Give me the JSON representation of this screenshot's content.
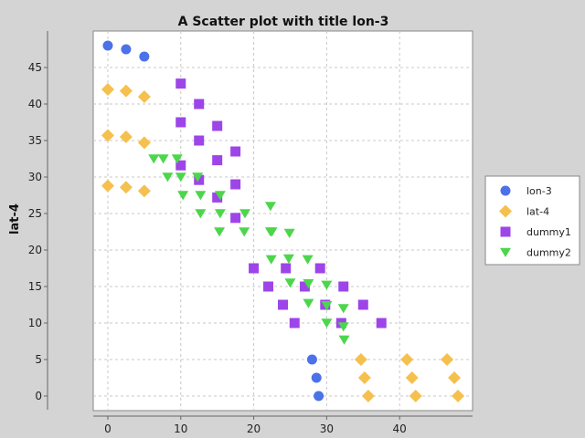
{
  "chart_data": {
    "type": "scatter",
    "title": "A Scatter plot with title lon-3",
    "xlabel": "",
    "ylabel": "lat-4",
    "xlim": [
      -2,
      50
    ],
    "ylim": [
      -2,
      50
    ],
    "x_ticks": [
      "0",
      "10",
      "20",
      "30",
      "40"
    ],
    "y_ticks": [
      "0",
      "5",
      "10",
      "15",
      "20",
      "25",
      "30",
      "35",
      "40",
      "45"
    ],
    "grid": true,
    "legend_position": "right",
    "series": [
      {
        "name": "lon-3",
        "color": "#4b72e8",
        "marker": "circle",
        "points": [
          [
            0,
            48
          ],
          [
            2.5,
            47.5
          ],
          [
            5,
            46.5
          ],
          [
            28,
            5
          ],
          [
            28.6,
            2.5
          ],
          [
            28.9,
            0
          ]
        ]
      },
      {
        "name": "lat-4",
        "color": "#f5c04e",
        "marker": "diamond",
        "points": [
          [
            0,
            42
          ],
          [
            2.5,
            41.8
          ],
          [
            5,
            41
          ],
          [
            0,
            35.7
          ],
          [
            2.5,
            35.5
          ],
          [
            5,
            34.7
          ],
          [
            0,
            28.8
          ],
          [
            2.5,
            28.6
          ],
          [
            5,
            28.1
          ],
          [
            34.7,
            5
          ],
          [
            35.2,
            2.5
          ],
          [
            35.7,
            0
          ],
          [
            41,
            5
          ],
          [
            41.7,
            2.5
          ],
          [
            42.2,
            0
          ],
          [
            46.5,
            5
          ],
          [
            47.5,
            2.5
          ],
          [
            48,
            0
          ]
        ]
      },
      {
        "name": "dummy1",
        "color": "#9d45e8",
        "marker": "square",
        "points": [
          [
            10,
            42.8
          ],
          [
            12.5,
            40
          ],
          [
            15,
            37
          ],
          [
            10,
            37.5
          ],
          [
            12.5,
            35
          ],
          [
            17.5,
            33.5
          ],
          [
            15,
            32.3
          ],
          [
            10,
            31.6
          ],
          [
            12.5,
            29.6
          ],
          [
            17.5,
            29
          ],
          [
            15,
            27.2
          ],
          [
            17.5,
            24.4
          ],
          [
            20,
            17.5
          ],
          [
            22,
            15
          ],
          [
            24.4,
            17.5
          ],
          [
            24,
            12.5
          ],
          [
            25.6,
            10
          ],
          [
            27,
            15
          ],
          [
            29.1,
            17.5
          ],
          [
            29.8,
            12.5
          ],
          [
            32,
            10
          ],
          [
            32.3,
            15
          ],
          [
            35,
            12.5
          ],
          [
            37.5,
            10
          ]
        ]
      },
      {
        "name": "dummy2",
        "color": "#4cd64c",
        "marker": "triangle",
        "points": [
          [
            6.3,
            32.5
          ],
          [
            7.6,
            32.5
          ],
          [
            9.5,
            32.5
          ],
          [
            8.2,
            30
          ],
          [
            10,
            30
          ],
          [
            12.3,
            30
          ],
          [
            10.3,
            27.5
          ],
          [
            12.7,
            27.5
          ],
          [
            15.4,
            27.5
          ],
          [
            12.7,
            25
          ],
          [
            15.4,
            25
          ],
          [
            18.8,
            25
          ],
          [
            15.3,
            22.5
          ],
          [
            18.7,
            22.5
          ],
          [
            22.3,
            26
          ],
          [
            22.3,
            22.5
          ],
          [
            22.5,
            22.5
          ],
          [
            24.9,
            22.3
          ],
          [
            22.4,
            18.7
          ],
          [
            24.8,
            18.8
          ],
          [
            27.4,
            18.7
          ],
          [
            25,
            15.5
          ],
          [
            27.5,
            15.4
          ],
          [
            30,
            15.2
          ],
          [
            27.5,
            12.7
          ],
          [
            30,
            12.4
          ],
          [
            32.3,
            12
          ],
          [
            30,
            10
          ],
          [
            32.3,
            9.5
          ],
          [
            32.4,
            7.7
          ]
        ]
      }
    ]
  }
}
